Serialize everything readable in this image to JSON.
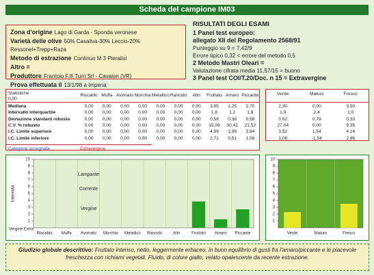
{
  "header": {
    "title": "Scheda del campione IM03"
  },
  "sample_info": [
    {
      "label": "Zona d'origine",
      "value": "Lago di Garda - Sponda veronese"
    },
    {
      "label": "Varietà delle olive",
      "value": "50% Casaliva-30% Leccio-20% Ressonel+Trepp+Raza"
    },
    {
      "label": "Metodo di estrazione",
      "value": "Continuo M 3 Pieralisi"
    },
    {
      "label": "Altro ="
    },
    {
      "label": "Produttore",
      "value": "Frantoio F.lli Turri Srl - Cavaion (VR)"
    },
    {
      "label": "Prova effettuata il",
      "value": "13/1/98 a Imperia"
    }
  ],
  "results": {
    "title": "RISULTATI DEGLI ESAMI",
    "sections": [
      {
        "heading": "1 Panel test europeo:",
        "subheading": "allegato XII del Regolamento 2568/91",
        "lines": [
          "Punteggio su 9 = 7,42/9",
          "Errore tipico 0,32 < errore del metodo 0,5"
        ]
      },
      {
        "heading": "2 Metodo Mastri Oleari =",
        "lines": [
          "Valutazione cifrata media 11,57/15 = buono"
        ]
      },
      {
        "heading": "3 Panel test COI/T.20/Doc. n 15 = Extravergine"
      }
    ]
  },
  "stats_table": {
    "corner": "Statistiche",
    "corner_value": "0,00",
    "columns": [
      "Riscaldo",
      "Muffa",
      "Avvinato",
      "Morchia",
      "Metallico",
      "Rancido",
      "Altri",
      "Fruttato",
      "Amaro",
      "Piccante"
    ],
    "rows": [
      {
        "label": "Mediana",
        "cells": [
          "0,00",
          "0,00",
          "0,00",
          "0,00",
          "0,00",
          "0,00",
          "0,00",
          "3,85",
          "1,25",
          "2,70"
        ]
      },
      {
        "label": "Intervallo interquartile",
        "cells": [
          "0,00",
          "0,00",
          "0,00",
          "0,00",
          "0,00",
          "0,00",
          "0,00",
          "1,8",
          "1,2",
          "1,8"
        ]
      },
      {
        "label": "Deviazione standard robusta",
        "cells": [
          "0,00",
          "0,00",
          "0,00",
          "0,00",
          "0,00",
          "0,00",
          "0,00",
          "0,58",
          "0,38",
          "0,58"
        ]
      },
      {
        "label": "C.V. % robusto",
        "cells": [
          "0,00",
          "0,00",
          "0,00",
          "0,00",
          "0,00",
          "0,00",
          "0,00",
          "15,09",
          "30,42",
          "21,52"
        ]
      },
      {
        "label": "I.C. Limite superiore",
        "cells": [
          "0,00",
          "0,00",
          "0,00",
          "0,00",
          "0,00",
          "0,00",
          "0,00",
          "4,99",
          "1,99",
          "3,84"
        ]
      },
      {
        "label": "I.C. Limite inferiore",
        "cells": [
          "0,00",
          "0,00",
          "0,00",
          "0,00",
          "0,00",
          "0,00",
          "0,00",
          "2,71",
          "0,51",
          "1,56"
        ]
      }
    ],
    "category_label": "Categoria assegnata",
    "category": "Extravergine"
  },
  "colour_table": {
    "columns": [
      "Verde",
      "Maturo",
      "Fresco"
    ],
    "rows": [
      [
        "2,30",
        "0,00",
        "3,50"
      ],
      [
        "1,9",
        "2,4",
        "1,0"
      ],
      [
        "0,62",
        "0,79",
        "0,33"
      ],
      [
        "27,04",
        "0,00",
        "9,35"
      ],
      [
        "3,52",
        "1,54",
        "4,14"
      ],
      [
        "1,08",
        "-1,54",
        "2,86"
      ]
    ]
  },
  "charts": [
    {
      "type": "bar",
      "ylabel": "Intensità",
      "bottom_label": "Vergine Extra",
      "zone_labels": [
        "Lampante",
        "Corrente",
        "Vergine"
      ],
      "categories": [
        "Riscaldo",
        "Muffa",
        "Avvinato",
        "Morchia",
        "Metallico",
        "Rancido",
        "Altri",
        "Fruttato",
        "Amaro",
        "Piccante"
      ],
      "values": [
        0,
        0,
        0,
        0,
        0,
        0,
        0,
        3.85,
        1.25,
        2.7
      ],
      "color": "#22a024",
      "plot_color": "#e2f0d2",
      "ylim": [
        0,
        10
      ],
      "yticks": [
        1,
        2,
        3,
        4,
        5,
        6,
        7,
        8,
        9,
        10
      ]
    },
    {
      "type": "bar",
      "categories": [
        "Verde",
        "Maturo",
        "Fresco"
      ],
      "values": [
        2.3,
        0,
        3.5
      ],
      "color": "#e6e627",
      "plot_color": "#5faa2c",
      "ylim": [
        0,
        10
      ],
      "yticks": [
        1,
        2,
        3,
        4,
        5,
        6,
        7,
        8,
        9,
        10
      ]
    }
  ],
  "footer": {
    "label": "Giudizio globale descrittivo:",
    "text": "Fruttato intenso, netto, leggermente erbaceo, in buon equilibrio di gusti fra l'amaro/piccante e le piacevole freschezza con richiami vegetali. Fluido, di colore giallo, velato opalescente da recente estrazione."
  }
}
